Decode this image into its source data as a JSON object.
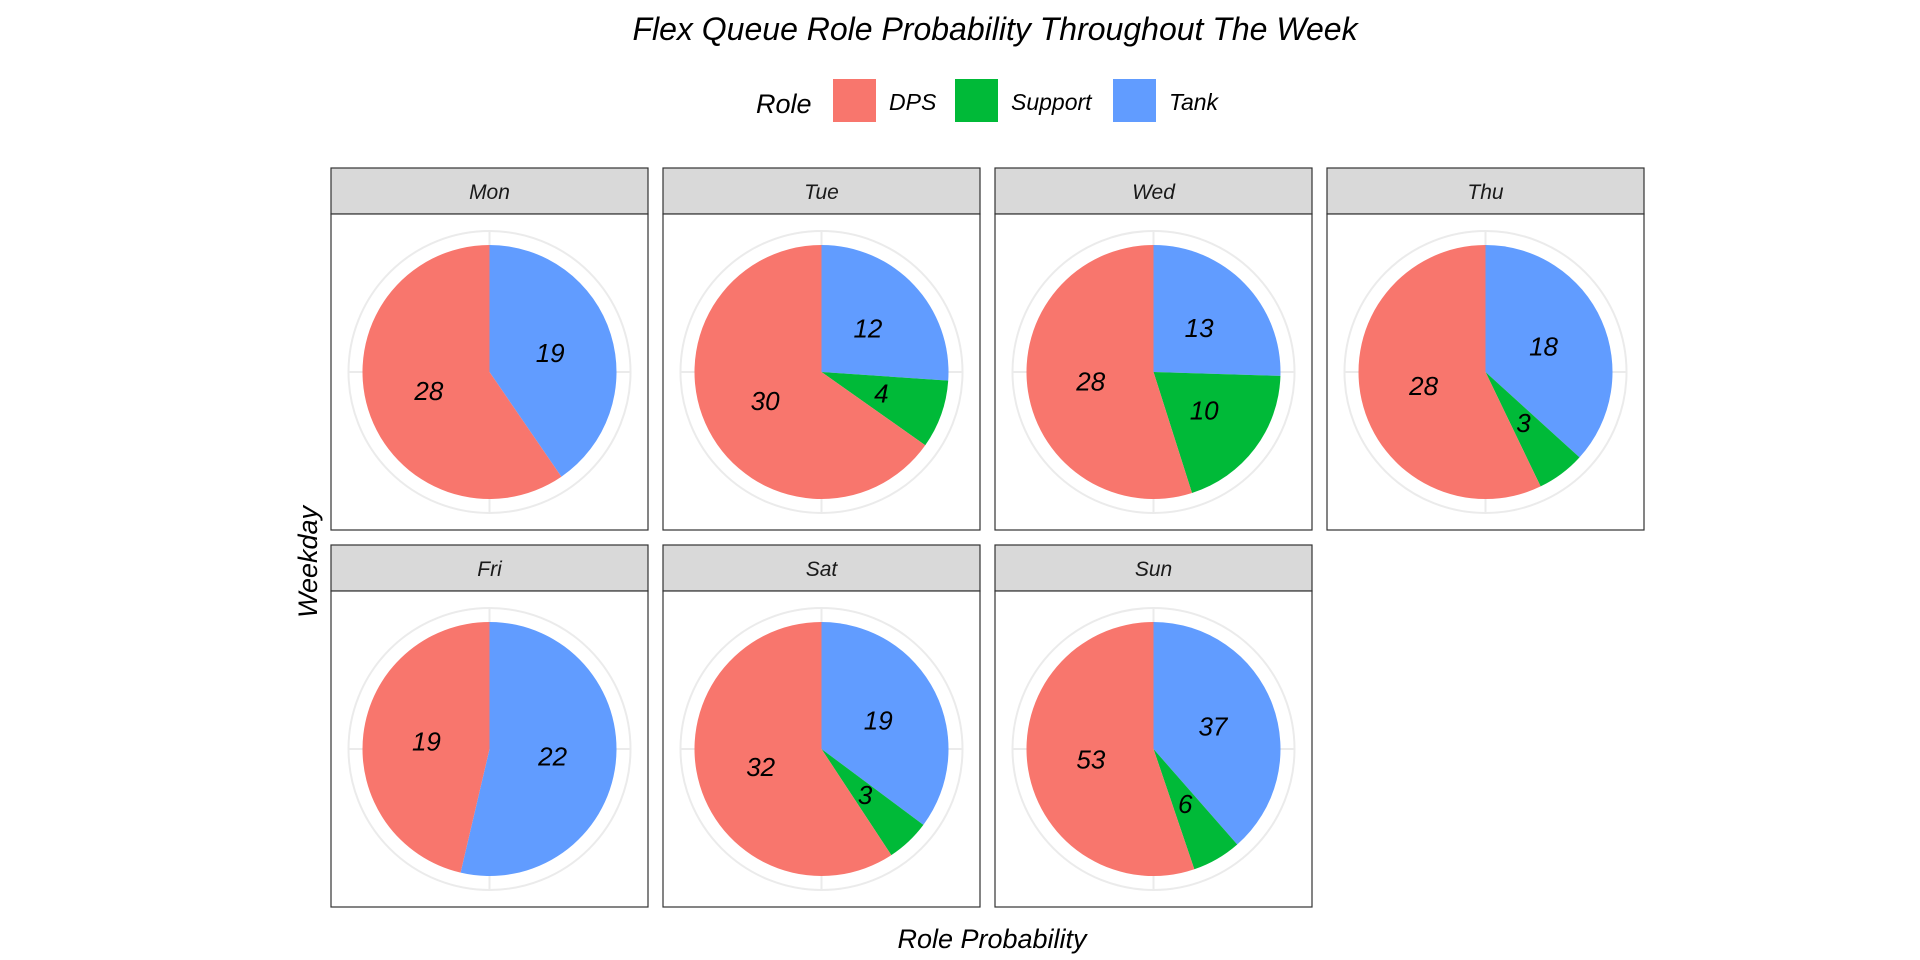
{
  "chart_data": {
    "type": "pie",
    "title": "Flex Queue Role Probability Throughout The Week",
    "xlabel": "Role Probability",
    "ylabel": "Weekday",
    "legend": {
      "title": "Role",
      "position": "top",
      "entries": [
        {
          "name": "DPS",
          "color": "#F8766D"
        },
        {
          "name": "Support",
          "color": "#00BA38"
        },
        {
          "name": "Tank",
          "color": "#619CFF"
        }
      ]
    },
    "grid": true,
    "slice_order": [
      "Tank",
      "Support",
      "DPS"
    ],
    "panels": [
      {
        "label": "Mon",
        "values": {
          "DPS": 28,
          "Support": 0,
          "Tank": 19
        }
      },
      {
        "label": "Tue",
        "values": {
          "DPS": 30,
          "Support": 4,
          "Tank": 12
        }
      },
      {
        "label": "Wed",
        "values": {
          "DPS": 28,
          "Support": 10,
          "Tank": 13
        }
      },
      {
        "label": "Thu",
        "values": {
          "DPS": 28,
          "Support": 3,
          "Tank": 18
        }
      },
      {
        "label": "Fri",
        "values": {
          "DPS": 19,
          "Support": 0,
          "Tank": 22
        }
      },
      {
        "label": "Sat",
        "values": {
          "DPS": 32,
          "Support": 3,
          "Tank": 19
        }
      },
      {
        "label": "Sun",
        "values": {
          "DPS": 53,
          "Support": 6,
          "Tank": 37
        }
      }
    ]
  }
}
